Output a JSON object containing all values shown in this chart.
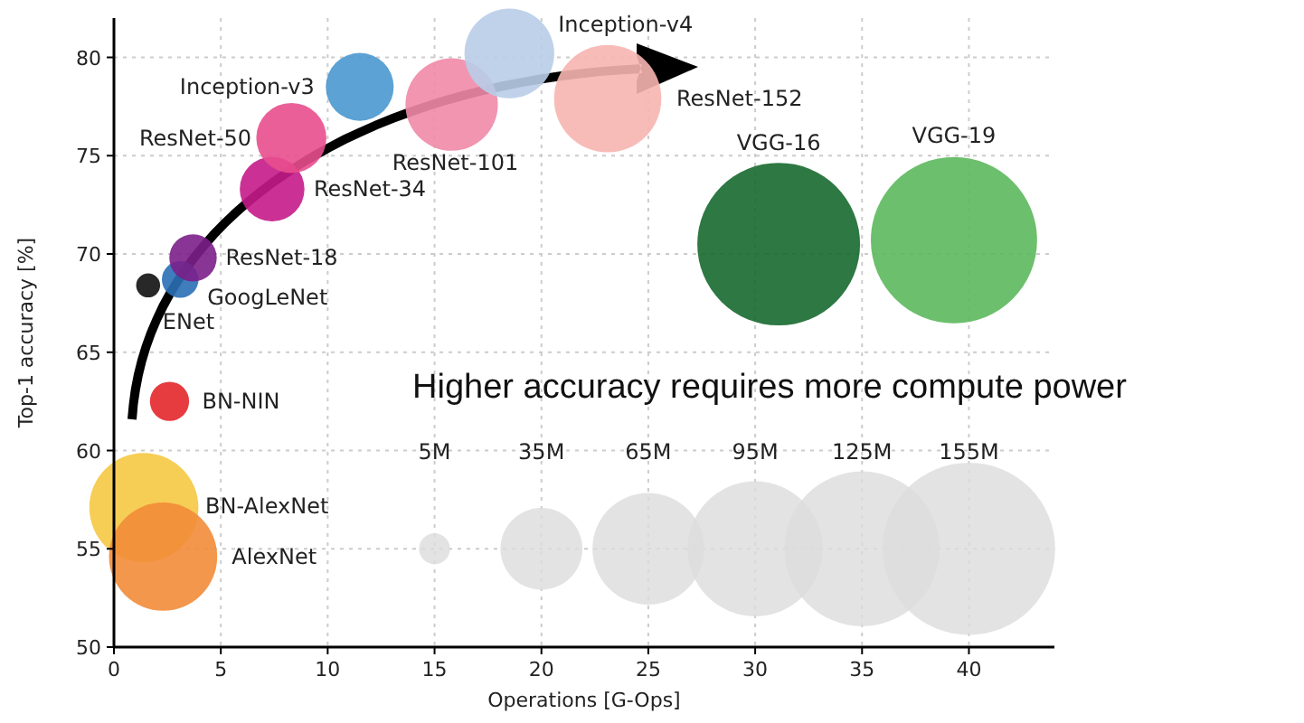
{
  "chart_data": {
    "type": "bubble",
    "xlabel": "Operations [G-Ops]",
    "ylabel": "Top-1 accuracy [%]",
    "xlim": [
      0,
      44
    ],
    "ylim": [
      50,
      82
    ],
    "xticks": [
      0,
      5,
      10,
      15,
      20,
      25,
      30,
      35,
      40
    ],
    "yticks": [
      50,
      55,
      60,
      65,
      70,
      75,
      80
    ],
    "grid": true,
    "size_legend": [
      {
        "value": 5,
        "label": "5M"
      },
      {
        "value": 35,
        "label": "35M"
      },
      {
        "value": 65,
        "label": "65M"
      },
      {
        "value": 95,
        "label": "95M"
      },
      {
        "value": 125,
        "label": "125M"
      },
      {
        "value": 155,
        "label": "155M"
      }
    ],
    "annotations": [
      "Higher accuracy requires more compute power"
    ],
    "series": [
      {
        "name": "BN-AlexNet",
        "color": "#f5c842",
        "x": [
          1.4
        ],
        "values": [
          57.1
        ],
        "sizes": [
          62
        ]
      },
      {
        "name": "AlexNet",
        "color": "#f28c38",
        "x": [
          2.3
        ],
        "values": [
          54.6
        ],
        "sizes": [
          61
        ]
      },
      {
        "name": "BN-NIN",
        "color": "#e3262a",
        "x": [
          2.6
        ],
        "values": [
          62.5
        ],
        "sizes": [
          8
        ]
      },
      {
        "name": "ENet",
        "color": "#111111",
        "x": [
          1.6
        ],
        "values": [
          68.4
        ],
        "sizes": [
          3
        ]
      },
      {
        "name": "GoogLeNet",
        "color": "#2a6fb5",
        "x": [
          3.1
        ],
        "values": [
          68.7
        ],
        "sizes": [
          7
        ]
      },
      {
        "name": "ResNet-18",
        "color": "#7b1f8a",
        "x": [
          3.7
        ],
        "values": [
          69.8
        ],
        "sizes": [
          11.7
        ]
      },
      {
        "name": "ResNet-34",
        "color": "#c51b8a",
        "x": [
          7.4
        ],
        "values": [
          73.3
        ],
        "sizes": [
          21.8
        ]
      },
      {
        "name": "ResNet-50",
        "color": "#e94e8e",
        "x": [
          8.3
        ],
        "values": [
          75.9
        ],
        "sizes": [
          25.6
        ]
      },
      {
        "name": "Inception-v3",
        "color": "#4a98cf",
        "x": [
          11.5
        ],
        "values": [
          78.5
        ],
        "sizes": [
          24
        ]
      },
      {
        "name": "ResNet-101",
        "color": "#f08aa8",
        "x": [
          15.8
        ],
        "values": [
          77.6
        ],
        "sizes": [
          44.5
        ]
      },
      {
        "name": "Inception-v4",
        "color": "#b8cde8",
        "x": [
          18.5
        ],
        "values": [
          80.2
        ],
        "sizes": [
          42
        ]
      },
      {
        "name": "ResNet-152",
        "color": "#f7b5b0",
        "x": [
          23.1
        ],
        "values": [
          77.9
        ],
        "sizes": [
          60
        ]
      },
      {
        "name": "VGG-16",
        "color": "#17692f",
        "x": [
          31.1
        ],
        "values": [
          70.5
        ],
        "sizes": [
          138
        ]
      },
      {
        "name": "VGG-19",
        "color": "#5cb85c",
        "x": [
          39.3
        ],
        "values": [
          70.7
        ],
        "sizes": [
          144
        ]
      }
    ]
  }
}
